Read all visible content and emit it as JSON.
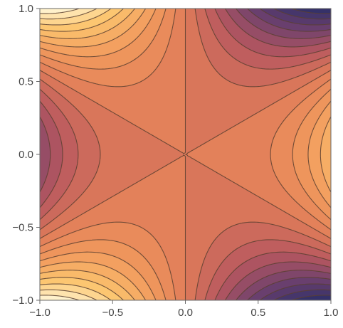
{
  "chart_data": {
    "type": "contour",
    "function": "x^3 - 3 x y^2",
    "x_range": [
      -1.0,
      1.0
    ],
    "y_range": [
      -1.0,
      1.0
    ],
    "x_ticks": [
      {
        "value": -1.0,
        "label": "-1.0"
      },
      {
        "value": -0.5,
        "label": "-0.5"
      },
      {
        "value": 0.0,
        "label": "0.0"
      },
      {
        "value": 0.5,
        "label": "0.5"
      },
      {
        "value": 1.0,
        "label": "1.0"
      }
    ],
    "y_ticks": [
      {
        "value": -1.0,
        "label": "-1.0"
      },
      {
        "value": -0.5,
        "label": "-0.5"
      },
      {
        "value": 0.0,
        "label": "0.0"
      },
      {
        "value": 0.5,
        "label": "0.5"
      },
      {
        "value": 1.0,
        "label": "1.0"
      }
    ],
    "value_range": [
      -2.0,
      2.0
    ],
    "contour_step": 0.2,
    "grid": false,
    "colormap": {
      "name": "low values dark purple, high values light yellow",
      "stops": [
        {
          "t": 0.0,
          "color": "#2c2f68"
        },
        {
          "t": 0.18,
          "color": "#6b3f6e"
        },
        {
          "t": 0.35,
          "color": "#b8585f"
        },
        {
          "t": 0.5,
          "color": "#e07c59"
        },
        {
          "t": 0.65,
          "color": "#f19a5d"
        },
        {
          "t": 0.82,
          "color": "#fcc56e"
        },
        {
          "t": 1.0,
          "color": "#fff8da"
        }
      ]
    },
    "contour_line_color": "#5a4030"
  }
}
